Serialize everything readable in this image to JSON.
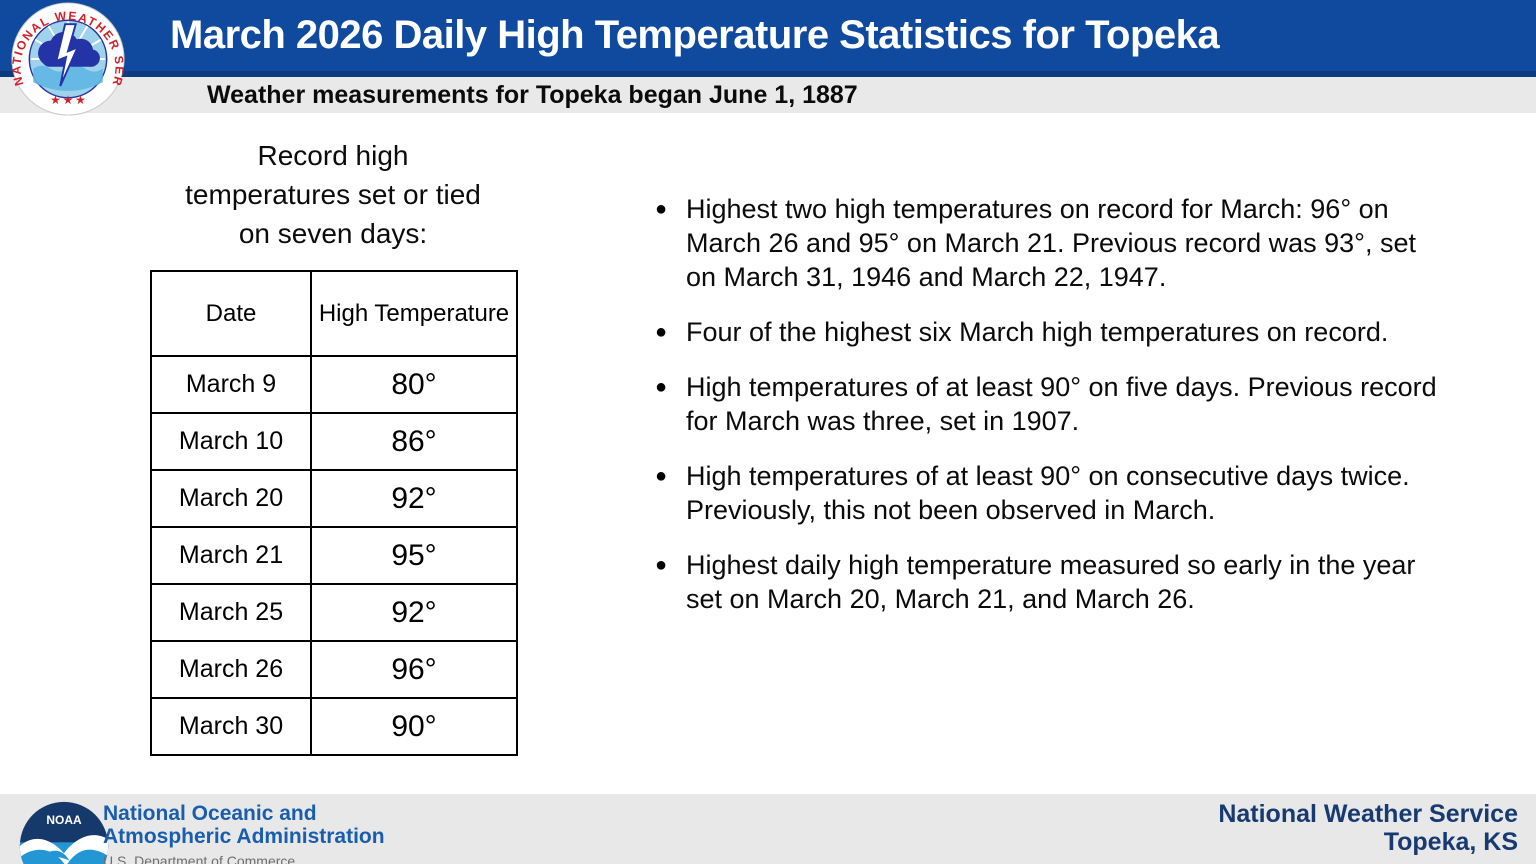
{
  "header": {
    "title": "March 2026 Daily High Temperature Statistics for Topeka",
    "subtitle": "Weather measurements for Topeka began June 1, 1887"
  },
  "logos": {
    "nws_ring_text": "NATIONAL WEATHER SERVICE",
    "nws_stars": "★ ★ ★",
    "noaa_label": "NOAA"
  },
  "left_panel": {
    "heading_lines": [
      "Record high",
      "temperatures set or tied",
      "on seven days:"
    ],
    "table": {
      "columns": [
        "Date",
        "High Temperature"
      ],
      "rows": [
        {
          "date": "March 9",
          "high": "80°"
        },
        {
          "date": "March 10",
          "high": "86°"
        },
        {
          "date": "March 20",
          "high": "92°"
        },
        {
          "date": "March 21",
          "high": "95°"
        },
        {
          "date": "March 25",
          "high": "92°"
        },
        {
          "date": "March 26",
          "high": "96°"
        },
        {
          "date": "March 30",
          "high": "90°"
        }
      ]
    }
  },
  "bullets": [
    "Highest two high temperatures on record for March: 96° on March 26 and 95° on March 21. Previous record was 93°, set on March 31, 1946 and March 22, 1947.",
    "Four of the highest six March high temperatures on record.",
    "High temperatures of at least 90° on five days. Previous record for March was three, set in 1907.",
    "High temperatures of at least 90° on consecutive days twice. Previously, this not been observed in March.",
    "Highest daily high temperature measured so early in the year set on March 20, March 21, and March 26."
  ],
  "footer": {
    "noaa_line1": "National Oceanic and",
    "noaa_line2": "Atmospheric Administration",
    "noaa_line3": "U.S. Department of Commerce",
    "nws_office_line1": "National Weather Service",
    "nws_office_line2": "Topeka, KS"
  },
  "colors": {
    "header_blue": "#0F4A9F",
    "header_border": "#0C3B82",
    "subbar_gray": "#E9E9E9",
    "footer_gray": "#E8E8E8",
    "noaa_text_blue": "#1A5DAD",
    "commerce_gray": "#6E6E6E",
    "footer_navy": "#173A70",
    "logo_red": "#D22128",
    "logo_navy": "#2433A5",
    "logo_sky": "#9FD3EC",
    "noaa_logo_navy": "#15396B",
    "noaa_logo_blue": "#2397D4"
  }
}
